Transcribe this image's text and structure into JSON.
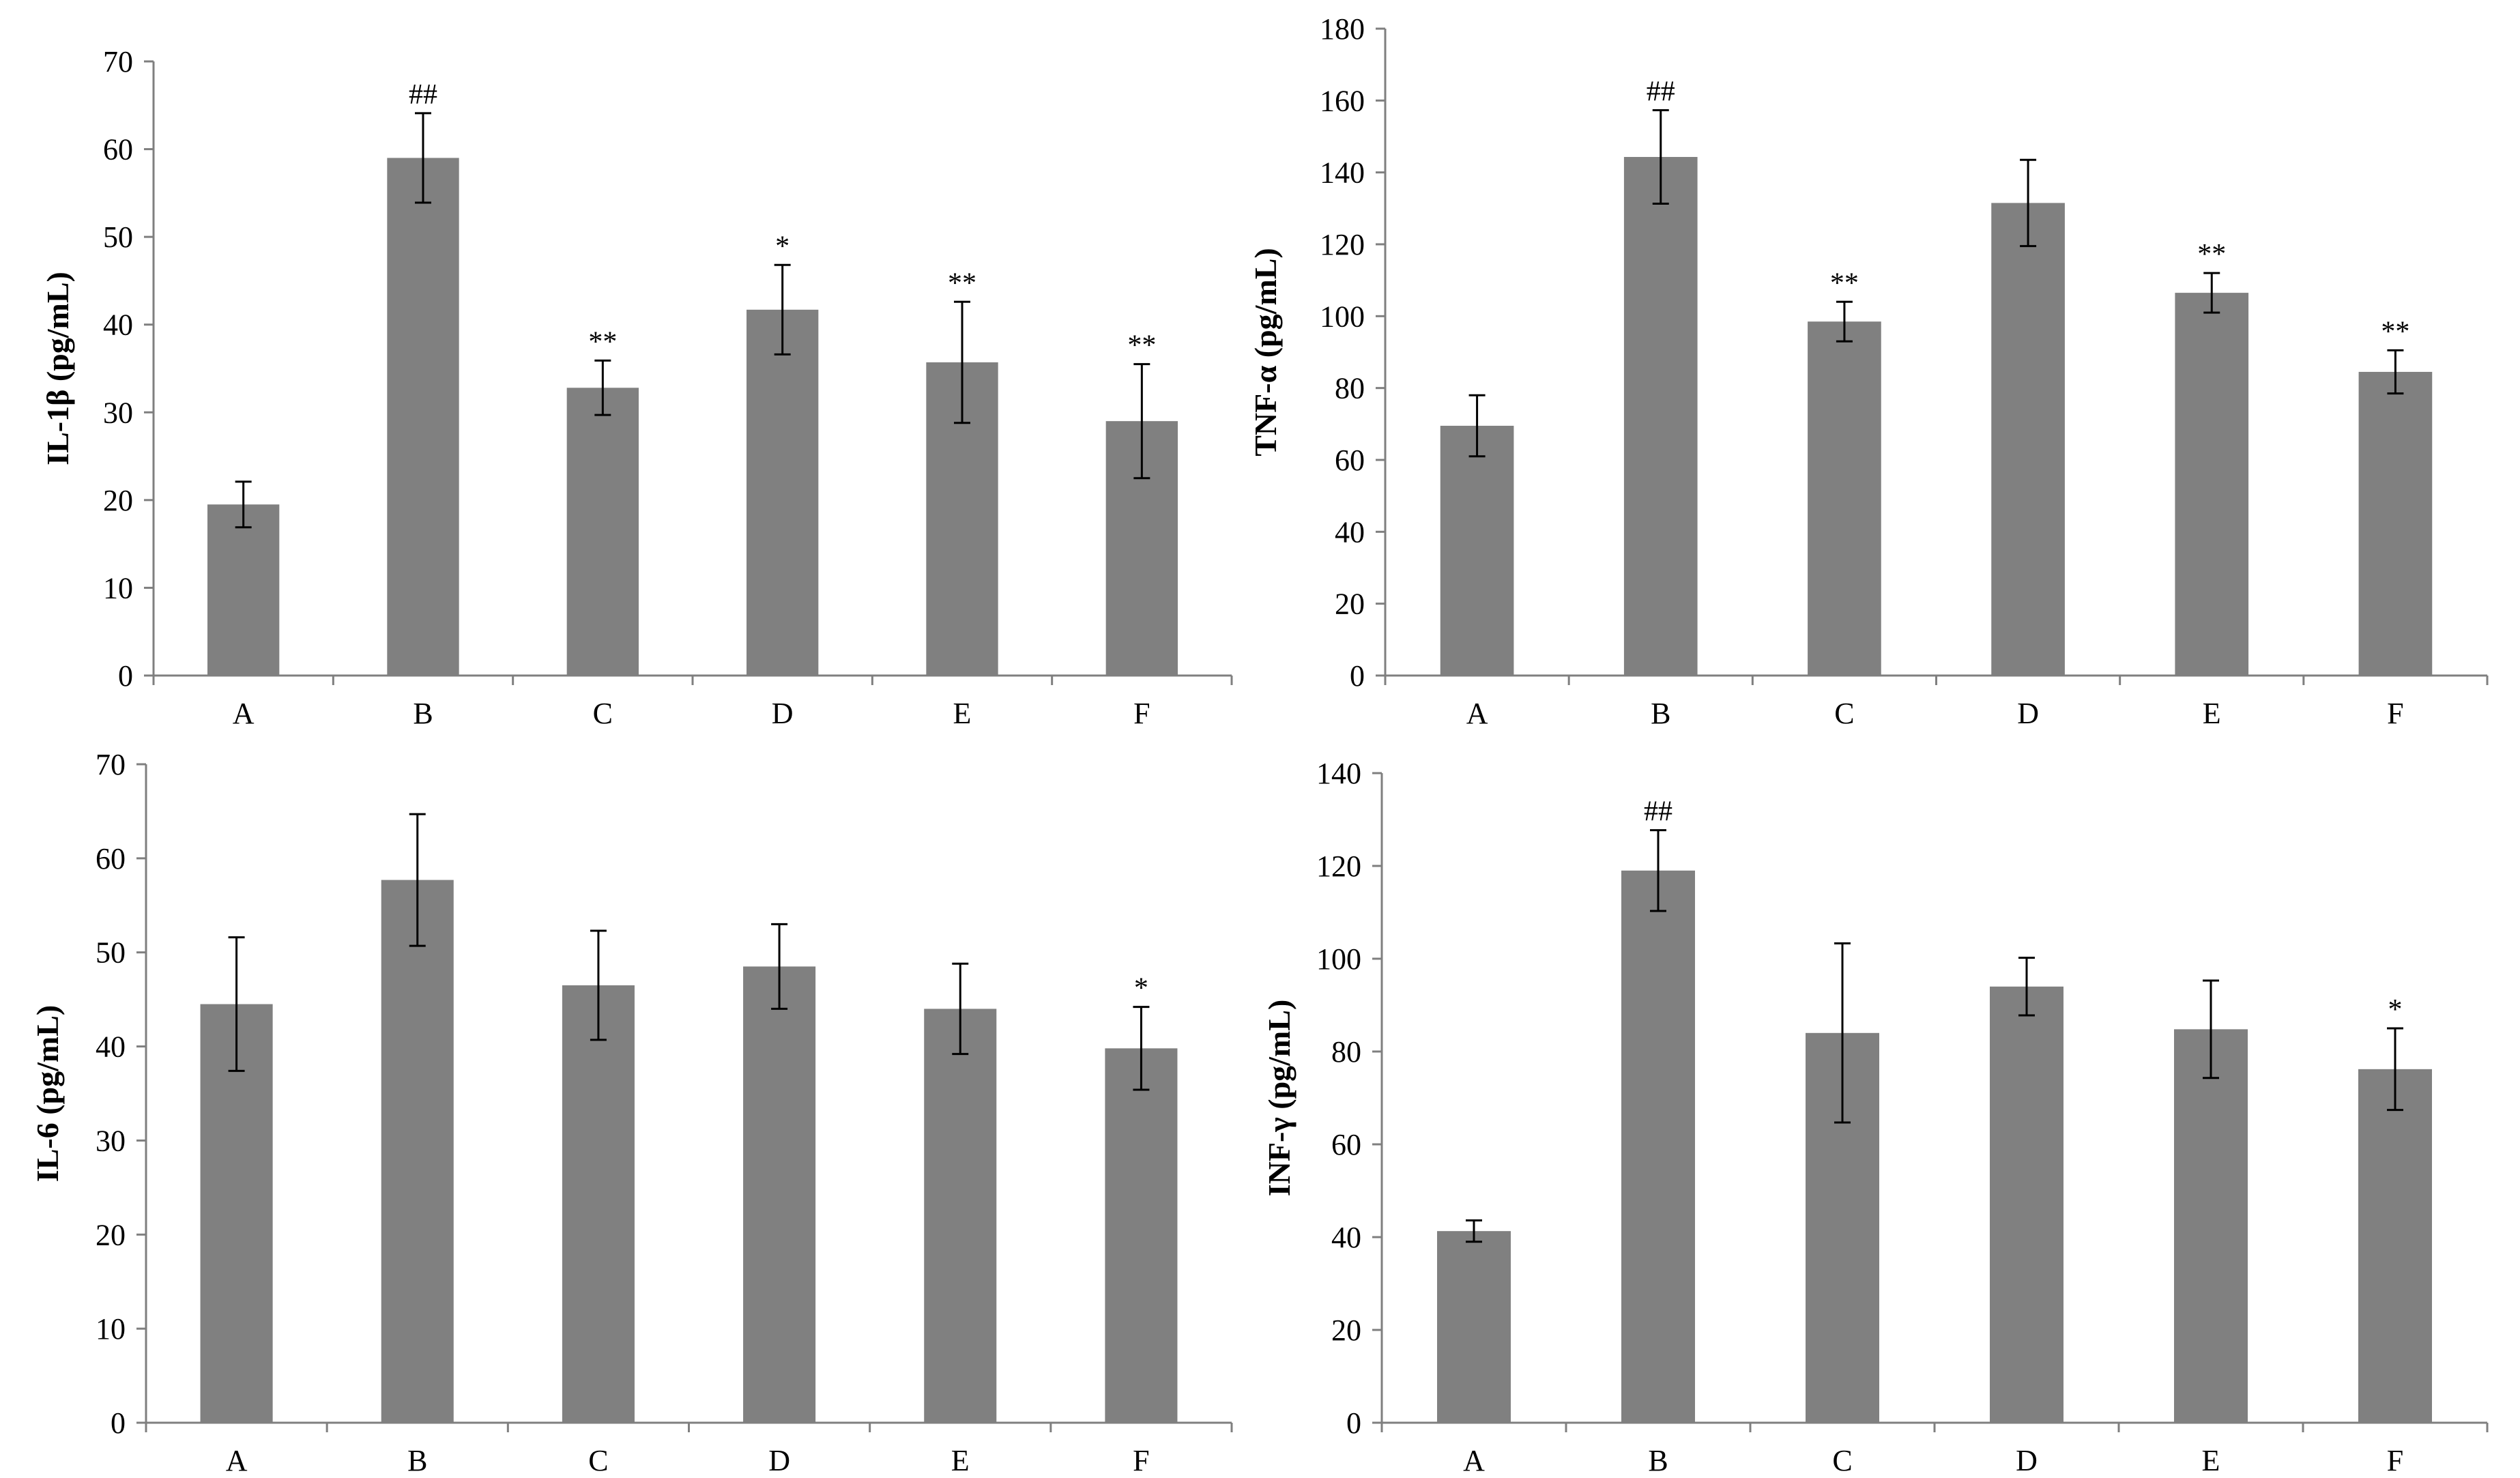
{
  "colors": {
    "bar": "#808080",
    "axis": "#7f7f7f",
    "error_bar": "#000000",
    "text": "#000000"
  },
  "chart_data": [
    {
      "type": "bar",
      "title": "",
      "xlabel": "",
      "ylabel": "IL-1β (pg/mL)",
      "categories": [
        "A",
        "B",
        "C",
        "D",
        "E",
        "F"
      ],
      "values": [
        19.5,
        59,
        32.8,
        41.7,
        35.7,
        29
      ],
      "errors": [
        2.6,
        5.1,
        3.1,
        5.1,
        6.9,
        6.5
      ],
      "annotations": [
        "",
        "##",
        "**",
        "*",
        "**",
        "**"
      ],
      "ylim": [
        0,
        70
      ],
      "yticks": [
        0,
        10,
        20,
        30,
        40,
        50,
        60,
        70
      ],
      "grid": false
    },
    {
      "type": "bar",
      "title": "",
      "xlabel": "",
      "ylabel": "TNF-α (pg/mL)",
      "categories": [
        "A",
        "B",
        "C",
        "D",
        "E",
        "F"
      ],
      "values": [
        69.5,
        144.3,
        98.5,
        131.5,
        106.5,
        84.5
      ],
      "errors": [
        8.5,
        13,
        5.5,
        12,
        5.5,
        6
      ],
      "annotations": [
        "",
        "##",
        "**",
        "",
        "**",
        "**"
      ],
      "ylim": [
        0,
        180
      ],
      "yticks": [
        0,
        20,
        40,
        60,
        80,
        100,
        120,
        140,
        160,
        180
      ],
      "grid": false
    },
    {
      "type": "bar",
      "title": "",
      "xlabel": "",
      "ylabel": "IL-6 (pg/mL)",
      "categories": [
        "A",
        "B",
        "C",
        "D",
        "E",
        "F"
      ],
      "values": [
        44.5,
        57.7,
        46.5,
        48.5,
        44,
        39.8
      ],
      "errors": [
        7.1,
        7,
        5.8,
        4.5,
        4.8,
        4.4
      ],
      "annotations": [
        "",
        "",
        "",
        "",
        "",
        "*"
      ],
      "ylim": [
        0,
        70
      ],
      "yticks": [
        0,
        10,
        20,
        30,
        40,
        50,
        60,
        70
      ],
      "grid": false
    },
    {
      "type": "bar",
      "title": "",
      "xlabel": "",
      "ylabel": "INF-γ (pg/mL)",
      "categories": [
        "A",
        "B",
        "C",
        "D",
        "E",
        "F"
      ],
      "values": [
        41.3,
        119,
        84,
        94,
        84.8,
        76.2
      ],
      "errors": [
        2.3,
        8.7,
        19.3,
        6.2,
        10.5,
        8.8
      ],
      "annotations": [
        "",
        "##",
        "",
        "",
        "",
        "*"
      ],
      "ylim": [
        0,
        140
      ],
      "yticks": [
        0,
        20,
        40,
        60,
        80,
        100,
        120,
        140
      ],
      "grid": false
    }
  ]
}
